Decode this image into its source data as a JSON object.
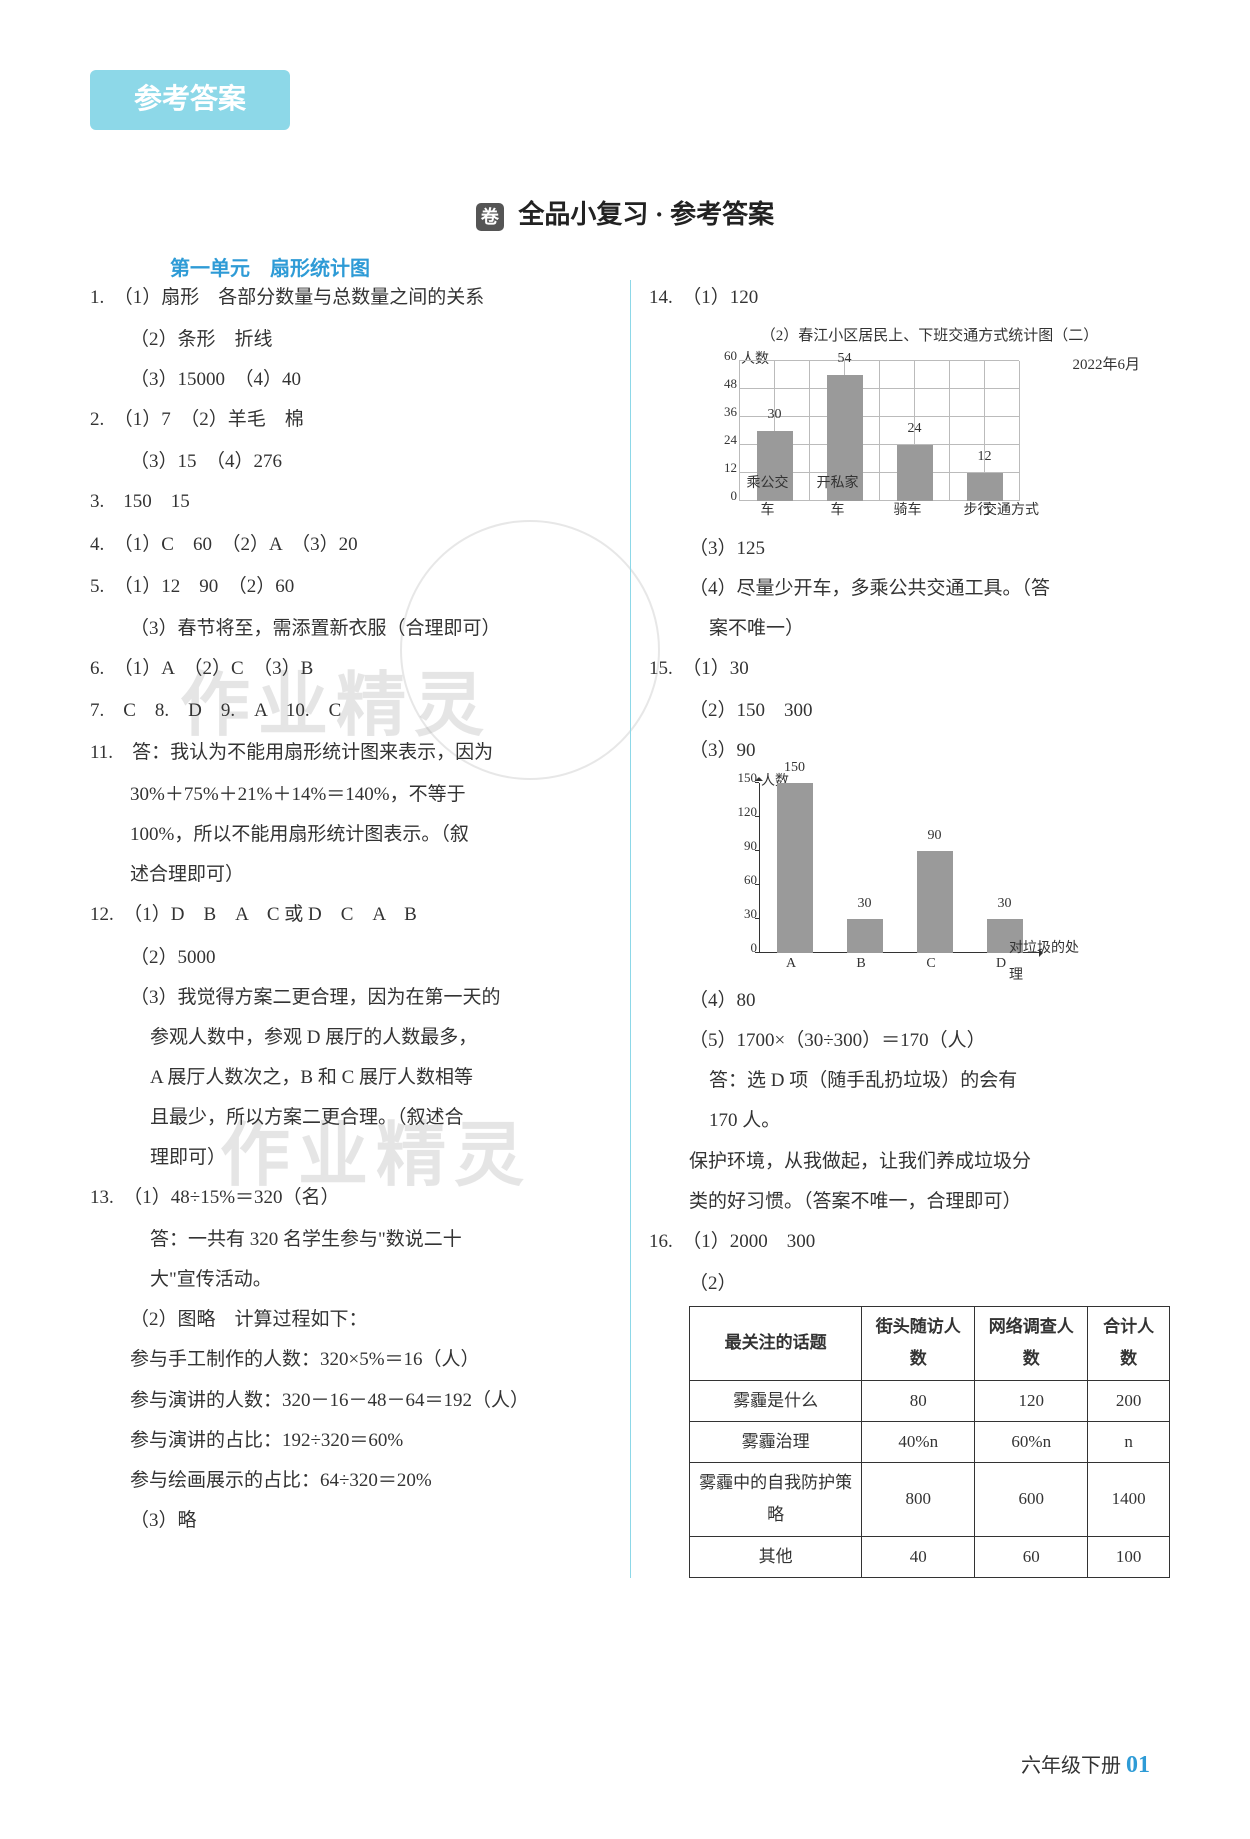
{
  "header_badge": "参考答案",
  "main_title": "全品小复习 · 参考答案",
  "main_title_icon": "卷",
  "unit_title": "第一单元　扇形统计图",
  "left": {
    "q1": {
      "num": "1.",
      "a": "（1）扇形　各部分数量与总数量之间的关系",
      "b": "（2）条形　折线",
      "c": "（3）15000　（4）40"
    },
    "q2": {
      "num": "2.",
      "a": "（1）7　（2）羊毛　棉",
      "b": "（3）15　（4）276"
    },
    "q3": {
      "num": "3.",
      "a": "150　15"
    },
    "q4": {
      "num": "4.",
      "a": "（1）C　60　（2）A　（3）20"
    },
    "q5": {
      "num": "5.",
      "a": "（1）12　90　（2）60",
      "b": "（3）春节将至，需添置新衣服（合理即可）"
    },
    "q6": {
      "num": "6.",
      "a": "（1）A　（2）C　（3）B"
    },
    "q7": "7.　C　8.　D　9.　A　10.　C",
    "q11": {
      "num": "11.",
      "a": "答：我认为不能用扇形统计图来表示，因为",
      "b": "30%＋75%＋21%＋14%＝140%，不等于",
      "c": "100%，所以不能用扇形统计图表示。（叙",
      "d": "述合理即可）"
    },
    "q12": {
      "num": "12.",
      "a": "（1）D　B　A　C 或 D　C　A　B",
      "b": "（2）5000",
      "c": "（3）我觉得方案二更合理，因为在第一天的",
      "d": "参观人数中，参观 D 展厅的人数最多，",
      "e": "A 展厅人数次之，B 和 C 展厅人数相等",
      "f": "且最少，所以方案二更合理。（叙述合",
      "g": "理即可）"
    },
    "q13": {
      "num": "13.",
      "a": "（1）48÷15%＝320（名）",
      "b": "答：一共有 320 名学生参与\"数说二十",
      "c": "大\"宣传活动。",
      "d": "（2）图略　计算过程如下：",
      "e": "参与手工制作的人数：320×5%＝16（人）",
      "f": "参与演讲的人数：320－16－48－64＝192（人）",
      "g": "参与演讲的占比：192÷320＝60%",
      "h": "参与绘画展示的占比：64÷320＝20%",
      "i": "（3）略"
    }
  },
  "right": {
    "q14": {
      "num": "14.",
      "a": "（1）120",
      "title": "（2）春江小区居民上、下班交通方式统计图（二）",
      "date": "2022年6月",
      "c": "（3）125",
      "d": "（4）尽量少开车，多乘公共交通工具。（答",
      "e": "案不唯一）"
    },
    "q15": {
      "num": "15.",
      "a": "（1）30",
      "b": "（2）150　300",
      "c": "（3）90",
      "d": "（4）80",
      "e": "（5）1700×（30÷300）＝170（人）",
      "f": "答：选 D 项（随手乱扔垃圾）的会有",
      "g": "170 人。",
      "h": "保护环境，从我做起，让我们养成垃圾分",
      "i": "类的好习惯。（答案不唯一，合理即可）"
    },
    "q16": {
      "num": "16.",
      "a": "（1）2000　300",
      "b": "（2）"
    }
  },
  "chart1": {
    "type": "bar",
    "ylabel": "人数",
    "categories": [
      "乘公交车",
      "开私家车",
      "骑车",
      "步行"
    ],
    "xaxis_label": "交通方式",
    "values": [
      30,
      54,
      24,
      12
    ],
    "yticks": [
      0,
      12,
      24,
      36,
      48,
      60
    ],
    "bar_color": "#9a9a9a",
    "grid_color": "#bbbbbb"
  },
  "chart2": {
    "type": "bar",
    "ylabel": "人数",
    "categories": [
      "A",
      "B",
      "C",
      "D"
    ],
    "xaxis_label": "对垃圾的处理",
    "values": [
      150,
      30,
      90,
      30
    ],
    "yticks": [
      0,
      30,
      60,
      90,
      120,
      150
    ],
    "bar_color": "#9a9a9a"
  },
  "table16": {
    "columns": [
      "最关注的话题",
      "街头随访人数",
      "网络调查人数",
      "合计人数"
    ],
    "rows": [
      [
        "雾霾是什么",
        "80",
        "120",
        "200"
      ],
      [
        "雾霾治理",
        "40%n",
        "60%n",
        "n"
      ],
      [
        "雾霾中的自我防护策略",
        "800",
        "600",
        "1400"
      ],
      [
        "其他",
        "40",
        "60",
        "100"
      ]
    ]
  },
  "watermark": "作业精灵",
  "footer": {
    "text": "六年级下册",
    "page": "01"
  }
}
